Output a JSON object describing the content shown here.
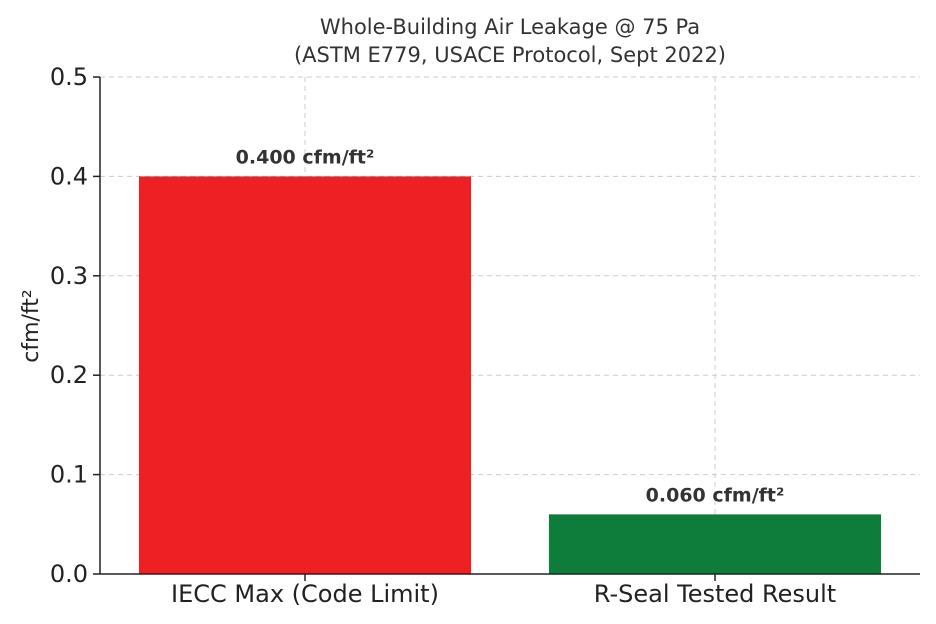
{
  "chart_data": {
    "type": "bar",
    "title": "Whole-Building Air Leakage @ 75 Pa",
    "subtitle": "(ASTM E779, USACE Protocol, Sept 2022)",
    "xlabel": "",
    "ylabel": "cfm/ft²",
    "categories": [
      "IECC Max (Code Limit)",
      "R-Seal Tested Result"
    ],
    "values": [
      0.4,
      0.06
    ],
    "data_labels": [
      "0.400 cfm/ft²",
      "0.060 cfm/ft²"
    ],
    "colors": [
      "#ee2024",
      "#0e7c3a"
    ],
    "ylim": [
      0,
      0.5
    ],
    "yticks": [
      0.0,
      0.1,
      0.2,
      0.3,
      0.4,
      0.5
    ],
    "ytick_labels": [
      "0.0",
      "0.1",
      "0.2",
      "0.3",
      "0.4",
      "0.5"
    ],
    "grid": true,
    "legend": "none"
  }
}
